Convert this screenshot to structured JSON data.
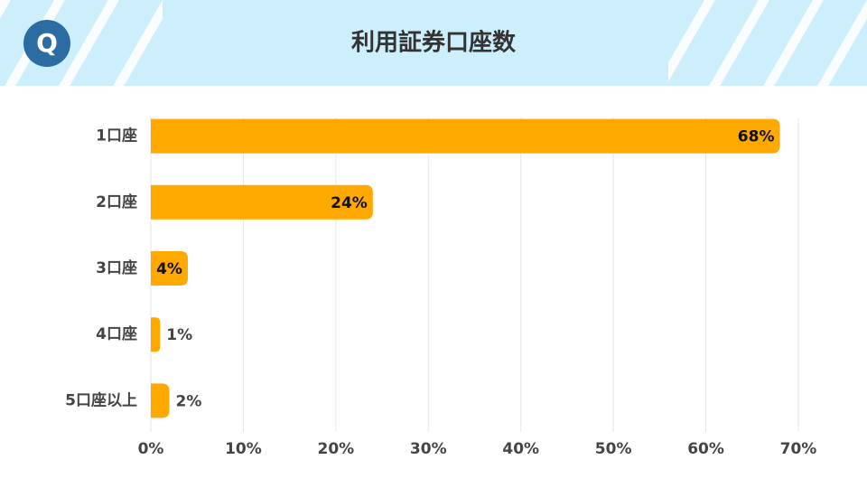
{
  "header": {
    "logo": "Q"
  },
  "chart_data": {
    "type": "bar",
    "orientation": "horizontal",
    "title": "利用証券口座数",
    "categories": [
      "1口座",
      "2口座",
      "3口座",
      "4口座",
      "5口座以上"
    ],
    "values": [
      68,
      24,
      4,
      1,
      2
    ],
    "value_labels": [
      "68%",
      "24%",
      "4%",
      "1%",
      "2%"
    ],
    "color": "#ffa800",
    "xlim": [
      0,
      70
    ],
    "xticks": [
      {
        "value": 0,
        "label": "0%"
      },
      {
        "value": 10,
        "label": "10%"
      },
      {
        "value": 20,
        "label": "20%"
      },
      {
        "value": 30,
        "label": "30%"
      },
      {
        "value": 40,
        "label": "40%"
      },
      {
        "value": 50,
        "label": "50%"
      },
      {
        "value": 60,
        "label": "60%"
      },
      {
        "value": 70,
        "label": "70%"
      }
    ],
    "grid": true
  }
}
